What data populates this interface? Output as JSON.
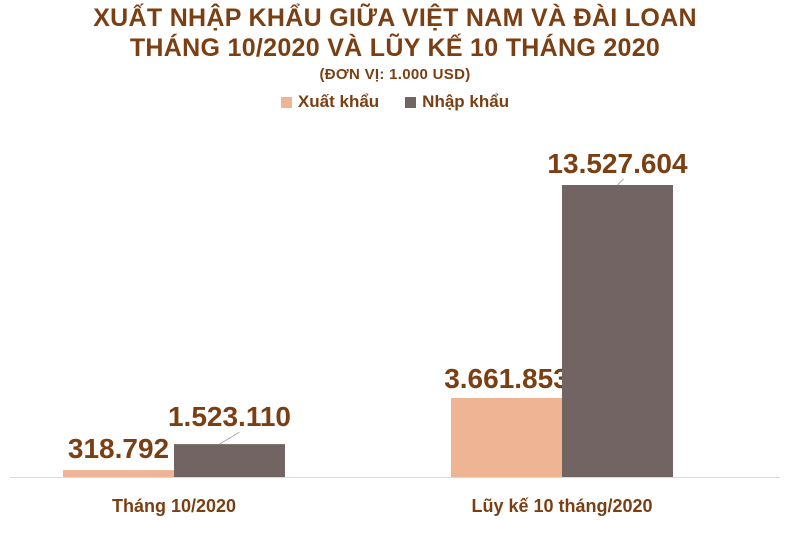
{
  "chart_data": {
    "type": "bar",
    "title_line1": "XUẤT NHẬP KHẨU GIỮA VIỆT NAM VÀ ĐÀI LOAN",
    "title_line2": "THÁNG 10/2020 VÀ LŨY KẾ 10 THÁNG 2020",
    "subtitle": "(ĐƠN VỊ: 1.000 USD)",
    "categories": [
      "Tháng 10/2020",
      "Lũy kế 10 tháng/2020"
    ],
    "series": [
      {
        "name": "Xuất khẩu",
        "color": "#eeb493",
        "values": [
          318792,
          3661853
        ],
        "labels": [
          "318.792",
          "3.661.853"
        ]
      },
      {
        "name": "Nhập khẩu",
        "color": "#716462",
        "values": [
          1523110,
          13527604
        ],
        "labels": [
          "1.523.110",
          "13.527.604"
        ]
      }
    ],
    "legend_position": "top",
    "grid": false
  }
}
